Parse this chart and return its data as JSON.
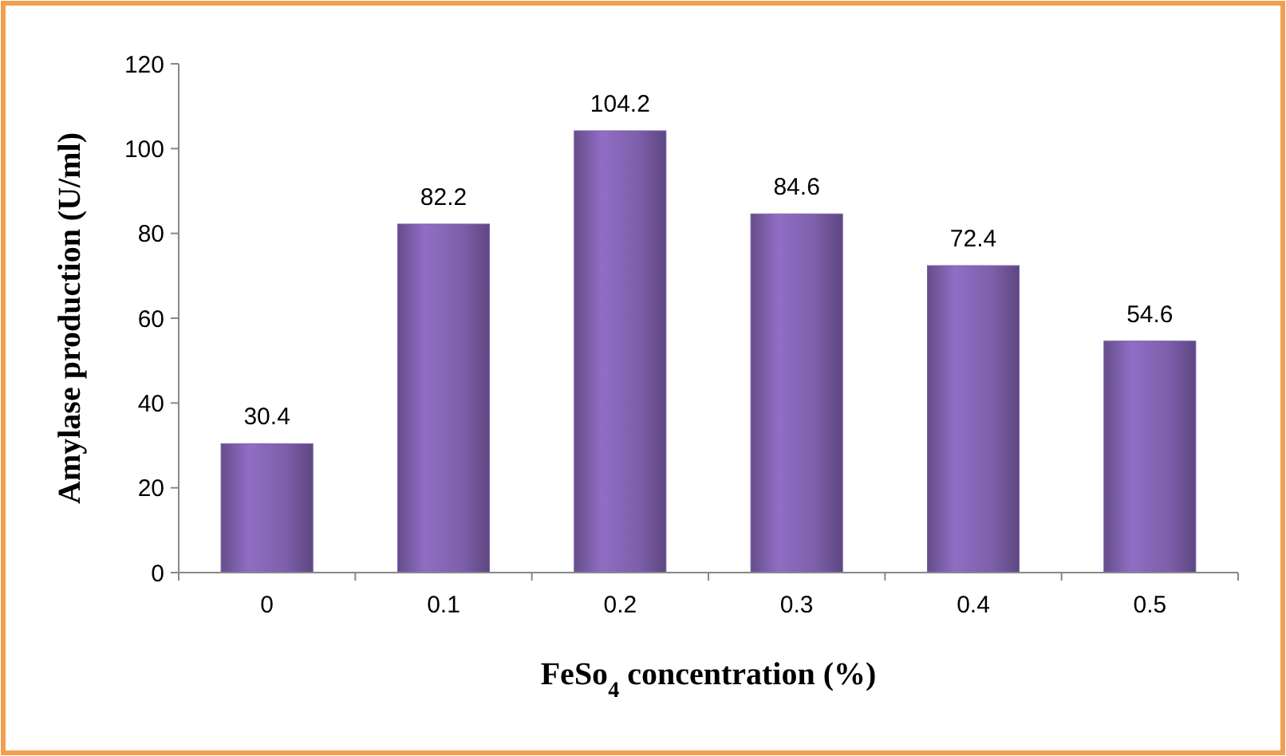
{
  "chart_data": {
    "type": "bar",
    "xlabel": "FeSo$_{4}$ concentration (%)",
    "ylabel": "Amylase production (U/ml)",
    "categories": [
      "0",
      "0.1",
      "0.2",
      "0.3",
      "0.4",
      "0.5"
    ],
    "values": [
      30.4,
      82.2,
      104.2,
      84.6,
      72.4,
      54.6
    ],
    "color": "#7d5fab",
    "ylim": [
      0,
      120
    ],
    "yticks": [
      0,
      20,
      40,
      60,
      80,
      100,
      120
    ],
    "grid": false,
    "data_labels": true
  }
}
